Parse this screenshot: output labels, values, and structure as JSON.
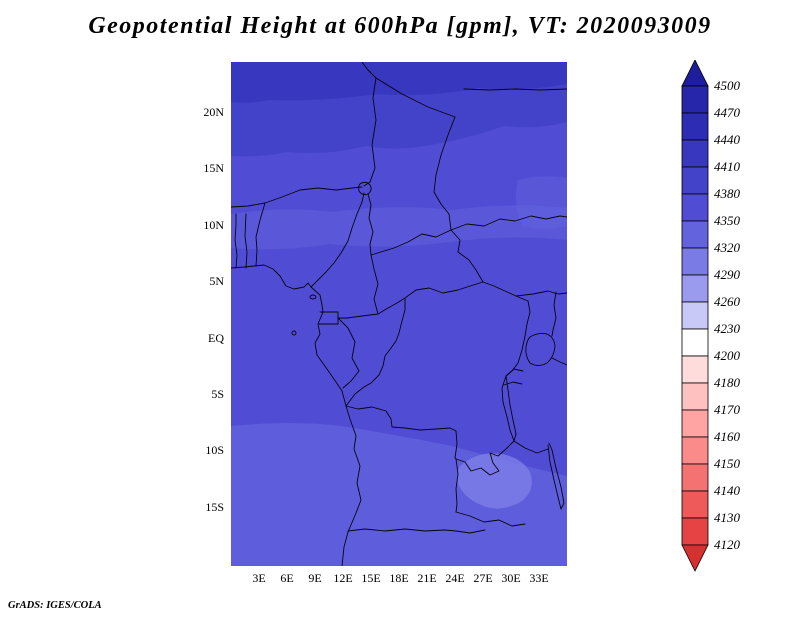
{
  "title": "Geopotential Height at 600hPa [gpm], VT: 2020093009",
  "footer": "GrADS: IGES/COLA",
  "chart_data": {
    "type": "heatmap",
    "title": "Geopotential Height at 600hPa [gpm]",
    "variable": "Geopotential Height",
    "level_hPa": 600,
    "units": "gpm",
    "valid_time": "2020093009",
    "region": "Central Africa, approx 0E-36E, 20S-24N",
    "x_ticks": [
      "3E",
      "6E",
      "9E",
      "12E",
      "15E",
      "18E",
      "21E",
      "24E",
      "27E",
      "30E",
      "33E"
    ],
    "y_ticks": [
      "20N",
      "15N",
      "10N",
      "5N",
      "EQ",
      "5S",
      "10S",
      "15S"
    ],
    "grid": false,
    "legend_position": "right-colorbar",
    "colorbar": {
      "levels": [
        4500,
        4470,
        4440,
        4410,
        4380,
        4350,
        4320,
        4290,
        4260,
        4230,
        4200,
        4180,
        4170,
        4160,
        4150,
        4140,
        4130,
        4120
      ],
      "colors": [
        "#1d1d9e",
        "#2626ab",
        "#2c2cb4",
        "#3737bf",
        "#4343c9",
        "#504dd4",
        "#6363dd",
        "#7b7be6",
        "#9a9aef",
        "#c9c9f7",
        "#ffffff",
        "#ffdcdc",
        "#ffc0c0",
        "#ffa3a3",
        "#fb8a8a",
        "#f57272",
        "#ee5a5a",
        "#e54444",
        "#d63030"
      ]
    },
    "field_summary": {
      "displayed_value_range_gpm": [
        4320,
        4470
      ],
      "notes": [
        "Bulk of the domain shaded in the 4350-4410 gpm blue-violet band",
        "Darker blues (4410-4470 gpm) across the far north, above about 17N",
        "Slightly lighter shading (4320-4350 gpm) in a band near 9-12N and across the far south below about 7S",
        "Lightest patches (about 4320 gpm) in the southeast near 10-14S, 25-31E"
      ]
    }
  }
}
